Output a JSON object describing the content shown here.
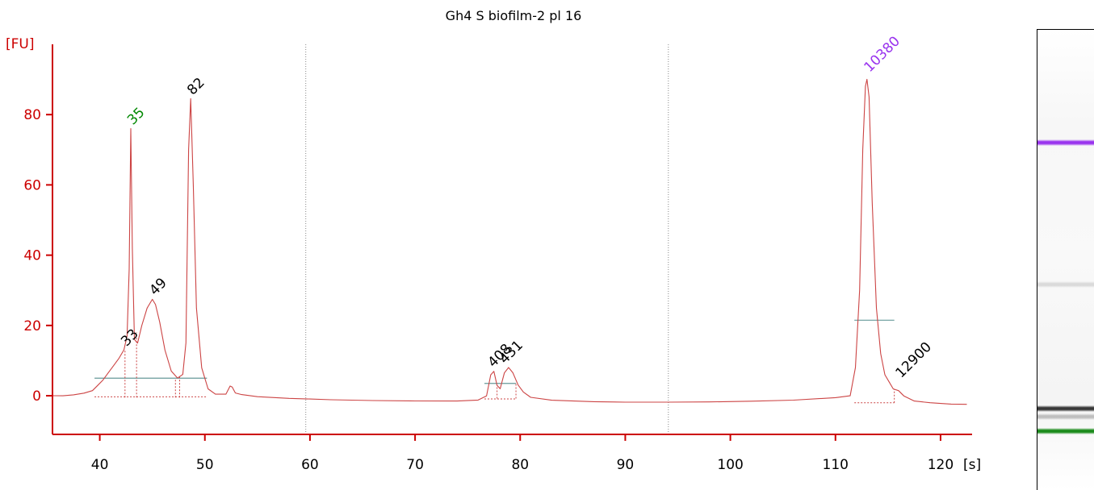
{
  "title": "Gh4 S biofilm-2 pl 16",
  "colors": {
    "axis": "#cc0000",
    "trace": "#cc4444",
    "label_default": "#000000",
    "label_lower_marker": "#008800",
    "label_upper_marker": "#9933ee",
    "baseline": "#669999",
    "gel_upper": "#9933ee",
    "gel_lower": "#1a8a1a"
  },
  "chart_data": {
    "type": "line",
    "title": "Gh4 S biofilm-2 pl 16",
    "ylabel": "[FU]",
    "xlabel": "[s]",
    "xlim": [
      35.5,
      123
    ],
    "ylim": [
      -11,
      100
    ],
    "xticks": [
      40,
      50,
      60,
      70,
      80,
      90,
      100,
      110,
      120
    ],
    "yticks": [
      0,
      20,
      40,
      60,
      80
    ],
    "grid": false,
    "vlines": [
      59.6,
      94.1
    ],
    "series": [
      {
        "x": [
          35.5,
          36.5,
          37.5,
          38.5,
          39.3,
          39.8,
          40.3,
          40.8,
          41.3,
          41.8,
          42.3,
          42.6,
          42.8,
          42.95,
          43.1,
          43.3,
          43.6,
          44.0,
          44.5,
          45.0,
          45.3,
          45.7,
          46.2,
          46.8,
          47.4,
          47.9,
          48.2,
          48.45,
          48.65,
          48.9,
          49.2,
          49.7,
          50.3,
          51.0,
          52.0,
          52.4,
          52.6,
          52.9,
          53.5,
          55.0,
          58.0,
          60.0,
          62.0,
          66.0,
          70.0,
          74.0,
          76.0,
          76.8,
          77.2,
          77.5,
          77.8,
          78.1,
          78.5,
          78.9,
          79.3,
          79.8,
          80.3,
          81.0,
          83.0,
          87.0,
          90.0,
          94.0,
          98.0,
          102.0,
          106.0,
          110.0,
          111.4,
          111.9,
          112.3,
          112.6,
          112.85,
          113.0,
          113.2,
          113.5,
          113.9,
          114.3,
          114.7,
          115.1,
          115.5,
          116.0,
          116.5,
          117.5,
          119.0,
          121.0,
          122.5
        ],
        "y": [
          0,
          0,
          0.3,
          0.8,
          1.5,
          3,
          4.5,
          6.5,
          8.5,
          10.5,
          13,
          17,
          36,
          76,
          42,
          16,
          15,
          20,
          25,
          27.5,
          26,
          21,
          13,
          7,
          5,
          6,
          15,
          70,
          84.5,
          60,
          25,
          8,
          2,
          0.5,
          0.5,
          2.8,
          2.5,
          0.8,
          0.3,
          -0.3,
          -0.8,
          -1,
          -1.2,
          -1.4,
          -1.5,
          -1.5,
          -1.2,
          0,
          6,
          7,
          3,
          2,
          6.5,
          8,
          6.5,
          3,
          1,
          -0.5,
          -1.3,
          -1.7,
          -1.8,
          -1.8,
          -1.7,
          -1.5,
          -1.2,
          -0.5,
          0,
          8,
          30,
          70,
          88,
          90,
          85,
          55,
          25,
          12,
          6,
          4,
          2,
          1.5,
          0,
          -1.5,
          -2,
          -2.4,
          -2.5
        ]
      }
    ],
    "peak_labels": [
      {
        "text": "35",
        "x": 43.0,
        "y": 76,
        "color": "#008800"
      },
      {
        "text": "82",
        "x": 48.7,
        "y": 84.5,
        "color": "#000000"
      },
      {
        "text": "49",
        "x": 45.1,
        "y": 27.5,
        "color": "#000000"
      },
      {
        "text": "33",
        "x": 42.4,
        "y": 13,
        "color": "#000000"
      },
      {
        "text": "408",
        "x": 77.3,
        "y": 7,
        "color": "#000000"
      },
      {
        "text": "431",
        "x": 78.4,
        "y": 8,
        "color": "#000000"
      },
      {
        "text": "10380",
        "x": 113.1,
        "y": 91,
        "color": "#9933ee"
      },
      {
        "text": "12900",
        "x": 116.1,
        "y": 4,
        "color": "#000000"
      }
    ],
    "baselines": [
      {
        "x0": 39.5,
        "x1": 50.2,
        "y": 5
      },
      {
        "x0": 76.6,
        "x1": 79.6,
        "y": 3.5
      },
      {
        "x0": 111.8,
        "x1": 115.6,
        "y": 21.5
      }
    ],
    "region_boundaries": [
      {
        "x": 42.4,
        "y0": -0.5,
        "y1": 13
      },
      {
        "x": 43.5,
        "y0": -0.5,
        "y1": 18
      },
      {
        "x": 47.2,
        "y0": -0.5,
        "y1": 5
      },
      {
        "x": 47.6,
        "y0": -0.5,
        "y1": 5.5
      },
      {
        "x": 77.8,
        "y0": -0.8,
        "y1": 3
      },
      {
        "x": 79.6,
        "y0": -0.8,
        "y1": 3.5
      },
      {
        "x": 115.6,
        "y0": -2,
        "y1": 2
      }
    ],
    "baseline_dotted": [
      {
        "x0": 39.5,
        "x1": 50.2,
        "y": -0.3
      },
      {
        "x0": 76.6,
        "x1": 79.6,
        "y": -0.9
      },
      {
        "x0": 111.8,
        "x1": 115.6,
        "y": -2
      }
    ]
  },
  "gel": {
    "bands": [
      {
        "name": "upper-marker",
        "pos": 0.245,
        "color": "#9933ee",
        "strength": 1.0
      },
      {
        "name": "faint-band",
        "pos": 0.554,
        "color": "#bbbbbb",
        "strength": 0.5
      },
      {
        "name": "dark-band",
        "pos": 0.823,
        "color": "#222222",
        "strength": 0.9
      },
      {
        "name": "grey-band",
        "pos": 0.84,
        "color": "#888888",
        "strength": 0.5
      },
      {
        "name": "lower-marker",
        "pos": 0.872,
        "color": "#1a8a1a",
        "strength": 1.0
      }
    ]
  }
}
